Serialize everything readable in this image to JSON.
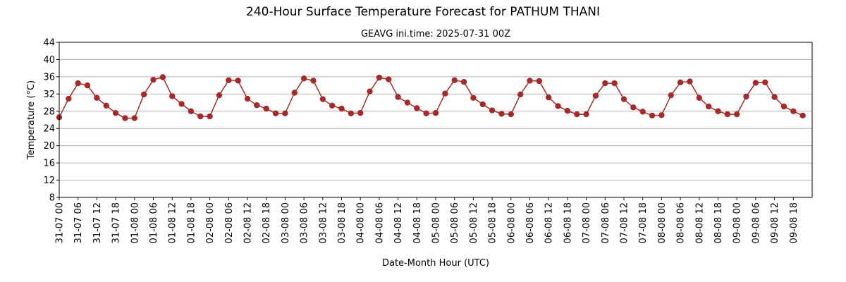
{
  "chart_data": {
    "type": "line",
    "title": "240-Hour Surface Temperature Forecast for PATHUM THANI",
    "subtitle": "GEAVG ini.time: 2025-07-31 00Z",
    "xlabel": "Date-Month Hour (UTC)",
    "ylabel": "Temperature (°C)",
    "ylim": [
      8,
      44
    ],
    "yticks": [
      8,
      12,
      16,
      20,
      24,
      28,
      32,
      36,
      40,
      44
    ],
    "grid": true,
    "x_tick_labels": [
      "31-07 00",
      "31-07 06",
      "31-07 12",
      "31-07 18",
      "01-08 00",
      "01-08 06",
      "01-08 12",
      "01-08 18",
      "02-08 00",
      "02-08 06",
      "02-08 12",
      "02-08 18",
      "03-08 00",
      "03-08 06",
      "03-08 12",
      "03-08 18",
      "04-08 00",
      "04-08 06",
      "04-08 12",
      "04-08 18",
      "05-08 00",
      "05-08 06",
      "05-08 12",
      "05-08 18",
      "06-08 00",
      "06-08 06",
      "06-08 12",
      "06-08 18",
      "07-08 00",
      "07-08 06",
      "07-08 12",
      "07-08 18",
      "08-08 00",
      "08-08 06",
      "08-08 12",
      "08-08 18",
      "09-08 00",
      "09-08 06",
      "09-08 12",
      "09-08 18"
    ],
    "x_step_hours": 3,
    "x_start": "31-07 00",
    "color": "#a52a2a",
    "series": [
      {
        "values": [
          26.6,
          30.9,
          34.5,
          34.0,
          31.1,
          29.3,
          27.6,
          26.4,
          26.4,
          31.9,
          35.3,
          35.9,
          31.5,
          29.7,
          28.0,
          26.8,
          26.8,
          31.7,
          35.2,
          35.1,
          30.9,
          29.4,
          28.6,
          27.5,
          27.5,
          32.3,
          35.6,
          35.1,
          30.8,
          29.3,
          28.6,
          27.5,
          27.6,
          32.6,
          35.8,
          35.4,
          31.3,
          30.0,
          28.7,
          27.5,
          27.6,
          32.1,
          35.2,
          34.8,
          31.1,
          29.6,
          28.2,
          27.4,
          27.3,
          31.9,
          35.1,
          35.0,
          31.2,
          29.2,
          28.1,
          27.3,
          27.3,
          31.6,
          34.5,
          34.5,
          30.8,
          28.9,
          27.9,
          27.0,
          27.1,
          31.7,
          34.7,
          34.9,
          31.1,
          29.1,
          28.0,
          27.3,
          27.3,
          31.4,
          34.6,
          34.7,
          31.3,
          29.1,
          28.0,
          27.0
        ]
      }
    ]
  }
}
